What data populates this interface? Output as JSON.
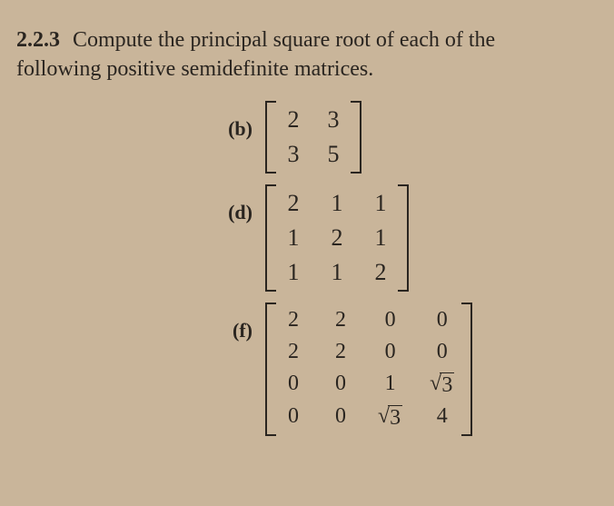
{
  "heading": {
    "number": "2.2.3",
    "text_line1": "Compute the principal square root of each of the",
    "text_line2": "following positive semidefinite matrices."
  },
  "problems": [
    {
      "label": "(b)",
      "rows": 2,
      "cols": 2,
      "cells": [
        "2",
        "3",
        "3",
        "5"
      ],
      "col_gap": 22,
      "font_size": 26
    },
    {
      "label": "(d)",
      "rows": 3,
      "cols": 3,
      "cells": [
        "2",
        "1",
        "1",
        "1",
        "2",
        "1",
        "1",
        "1",
        "2"
      ],
      "col_gap": 26,
      "font_size": 26
    },
    {
      "label": "(f)",
      "rows": 4,
      "cols": 4,
      "cells": [
        "2",
        "2",
        "0",
        "0",
        "2",
        "2",
        "0",
        "0",
        "0",
        "0",
        "1",
        "√3",
        "0",
        "0",
        "√3",
        "4"
      ],
      "col_gap": 30,
      "font_size": 24
    }
  ],
  "style": {
    "background": "#c9b59a",
    "text_color": "#2a2520",
    "heading_fontsize": 24,
    "label_fontsize": 22
  }
}
